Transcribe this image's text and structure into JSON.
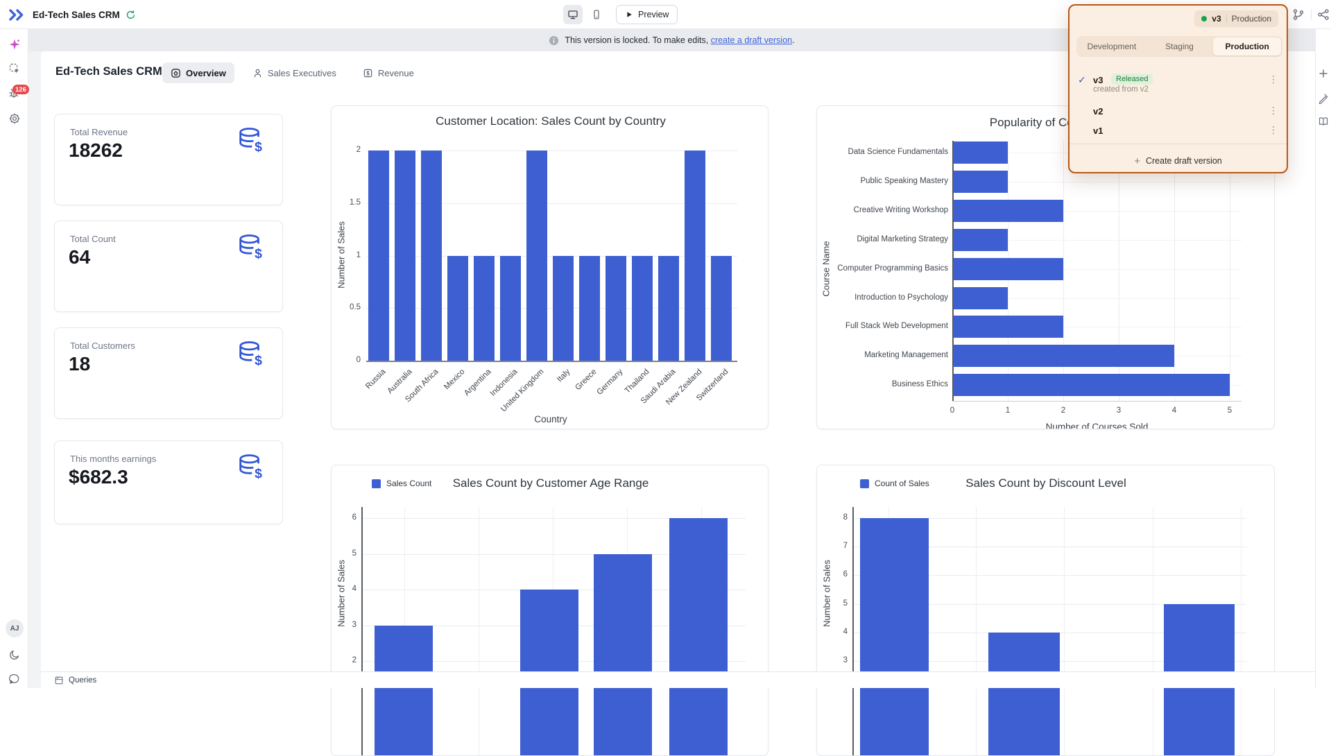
{
  "top_bar": {
    "app_title": "Ed-Tech Sales CRM",
    "preview_label": "Preview",
    "version_pill": {
      "version": "v3",
      "environment": "Production"
    }
  },
  "banner": {
    "text_before": "This version is locked. To make edits, ",
    "link_text": "create a draft version",
    "text_after": "."
  },
  "page_header": {
    "title": "Ed-Tech Sales CRM",
    "tabs": [
      {
        "label": "Overview",
        "icon": "home-icon",
        "active": true
      },
      {
        "label": "Sales Executives",
        "icon": "person-icon",
        "active": false
      },
      {
        "label": "Revenue",
        "icon": "money-icon",
        "active": false
      }
    ]
  },
  "left_rail": {
    "badge_count": "126",
    "avatar_initials": "AJ"
  },
  "stats": [
    {
      "label": "Total Revenue",
      "value": "18262"
    },
    {
      "label": "Total Count",
      "value": "64"
    },
    {
      "label": "Total Customers",
      "value": "18"
    },
    {
      "label": "This months earnings",
      "value": "$682.3"
    }
  ],
  "version_panel": {
    "env_tabs": [
      "Development",
      "Staging",
      "Production"
    ],
    "active_env": "Production",
    "versions": [
      {
        "name": "v3",
        "badge": "Released",
        "subtext": "created from v2",
        "selected": true
      },
      {
        "name": "v2"
      },
      {
        "name": "v1"
      }
    ],
    "create_label": "Create draft version"
  },
  "bottom_bar": {
    "label": "Queries"
  },
  "colors": {
    "bar_blue": "#3d5fd1",
    "accent_blue": "#3e63dd",
    "panel_border_orange": "#b55716",
    "panel_bg": "#fbeee2",
    "released_badge_bg": "#dff0dc",
    "released_badge_text": "#1e7e34",
    "banner_bg": "#e9ebee",
    "badge_red": "#e5484d"
  },
  "icons": {
    "app-logo-icon": "double-chevron",
    "sync-status-icon": "green-circular-arrows",
    "desktop-icon": "monitor",
    "mobile-icon": "phone",
    "play-icon": "triangle",
    "branch-icon": "git-branch",
    "share-icon": "connected-nodes",
    "magic-icon": "pink-sparkle",
    "select-icon": "dashed-box-cursor",
    "debug-icon": "bug",
    "settings-icon": "gear",
    "dark-mode-icon": "moon",
    "help-chat-icon": "speech-bubble",
    "add-component-icon": "plus",
    "styles-icon": "pen",
    "library-icon": "open-book",
    "info-icon": "circle-i",
    "queries-drawer-icon": "drawer",
    "stat-icon": "database-dollar",
    "kebab-icon": "vertical-dots",
    "check-icon": "checkmark"
  },
  "chart_data": [
    {
      "type": "bar",
      "title": "Customer Location: Sales Count by Country",
      "xlabel": "Country",
      "ylabel": "Number of Sales",
      "categories": [
        "Russia",
        "Australia",
        "South Africa",
        "Mexico",
        "Argentina",
        "Indonesia",
        "United Kingdom",
        "Italy",
        "Greece",
        "Germany",
        "Thailand",
        "Saudi Arabia",
        "New Zealand",
        "Switzerland"
      ],
      "values": [
        2,
        2,
        2,
        1,
        1,
        1,
        2,
        1,
        1,
        1,
        1,
        1,
        2,
        1
      ],
      "yticks": [
        0,
        0.5,
        1,
        1.5,
        2
      ],
      "ylim": [
        0,
        2
      ],
      "grid": true,
      "legend_position": "none"
    },
    {
      "type": "horizontal_bar",
      "title": "Popularity of Courses",
      "xlabel": "Number of Courses Sold",
      "ylabel": "Course Name",
      "categories": [
        "Data Science Fundamentals",
        "Public Speaking Mastery",
        "Creative Writing Workshop",
        "Digital Marketing Strategy",
        "Computer Programming Basics",
        "Introduction to Psychology",
        "Full Stack Web Development",
        "Marketing Management",
        "Business Ethics"
      ],
      "values": [
        1,
        1,
        2,
        1,
        2,
        1,
        2,
        4,
        5
      ],
      "xticks": [
        0,
        1,
        2,
        3,
        4,
        5
      ],
      "xlim": [
        0,
        5
      ],
      "grid": true,
      "legend_position": "none"
    },
    {
      "type": "bar",
      "title": "Sales Count by Customer Age Range",
      "legend": [
        "Sales Count"
      ],
      "ylabel": "Number of Sales",
      "values": [
        3,
        null,
        4,
        5,
        6
      ],
      "yticks": [
        2,
        3,
        4,
        5,
        6
      ],
      "grid": true,
      "legend_position": "top-left",
      "x_axis_cut_off_by_viewport": true
    },
    {
      "type": "bar",
      "title": "Sales Count by Discount Level",
      "legend": [
        "Count of Sales"
      ],
      "ylabel": "Number of Sales",
      "values": [
        8,
        null,
        4,
        null,
        5
      ],
      "yticks": [
        3,
        4,
        5,
        6,
        7,
        8
      ],
      "grid": true,
      "legend_position": "top-left",
      "x_axis_cut_off_by_viewport": true
    }
  ]
}
